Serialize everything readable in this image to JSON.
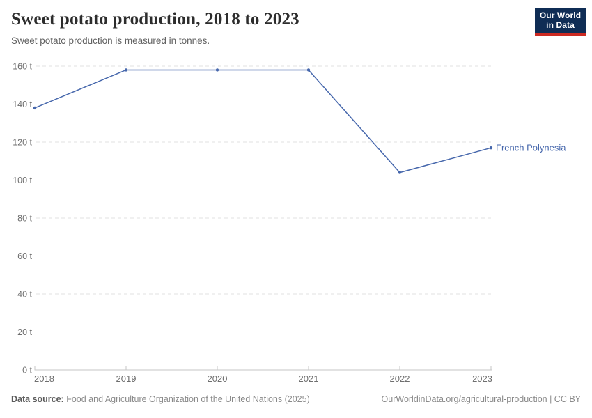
{
  "header": {
    "title": "Sweet potato production, 2018 to 2023",
    "subtitle": "Sweet potato production is measured in tonnes.",
    "logo": {
      "line1": "Our World",
      "line2": "in Data"
    }
  },
  "chart_data": {
    "type": "line",
    "title": "Sweet potato production, 2018 to 2023",
    "unit": "t",
    "x": [
      2018,
      2019,
      2020,
      2021,
      2022,
      2023
    ],
    "xtick_labels": [
      "2018",
      "2019",
      "2020",
      "2021",
      "2022",
      "2023"
    ],
    "series": [
      {
        "name": "French Polynesia",
        "values": [
          138,
          158,
          158,
          158,
          104,
          117
        ],
        "color": "#4667AC"
      }
    ],
    "ylim": [
      0,
      160
    ],
    "yticks": [
      0,
      20,
      40,
      60,
      80,
      100,
      120,
      140,
      160
    ],
    "ytick_labels": [
      "0 t",
      "20 t",
      "40 t",
      "60 t",
      "80 t",
      "100 t",
      "120 t",
      "140 t",
      "160 t"
    ],
    "grid": "horizontal-dashed",
    "legend_position": "end-of-line-label",
    "markers": true
  },
  "footer": {
    "source_label": "Data source:",
    "source_text": "Food and Agriculture Organization of the United Nations (2025)",
    "link_text": "OurWorldinData.org/agricultural-production | CC BY"
  },
  "colors": {
    "line": "#4667AC",
    "grid": "#e2e2e2",
    "axis": "#c6c6c6",
    "tick_text": "#6e6e6e",
    "title_text": "#2d2d2d",
    "subtitle_text": "#616161",
    "footer_text": "#8a8a8a",
    "logo_bg": "#0f2d55",
    "logo_bar": "#cc2a22"
  }
}
